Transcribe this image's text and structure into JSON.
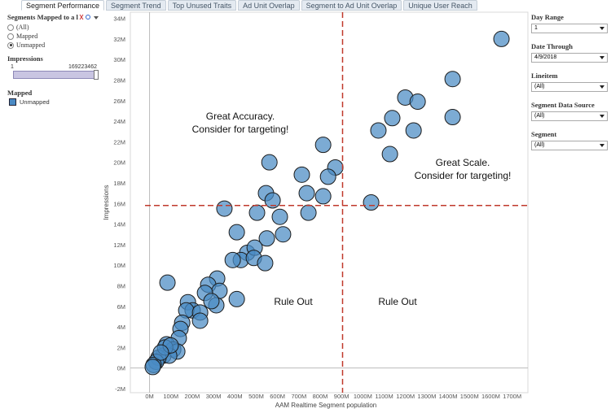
{
  "tabs": [
    "Segment Performance",
    "Segment Trend",
    "Top Unused Traits",
    "Ad Unit Overlap",
    "Segment to Ad Unit Overlap",
    "Unique User Reach"
  ],
  "left_panel": {
    "filter_title": "Segments Mapped to a l",
    "options": [
      "(All)",
      "Mapped",
      "Unmapped"
    ],
    "selected": 2,
    "slider_title": "Impressions",
    "slider_min": "1",
    "slider_max": "169223462",
    "legend_title": "Mapped",
    "legend_item": "Unmapped"
  },
  "right_panel": {
    "filters": [
      {
        "label": "Day Range",
        "value": "1"
      },
      {
        "label": "Date Through",
        "value": "4/9/2018"
      },
      {
        "label": "Lineitem",
        "value": "(All)"
      },
      {
        "label": "Segment Data Source",
        "value": "(All)"
      },
      {
        "label": "Segment",
        "value": "(All)"
      }
    ]
  },
  "chart_data": {
    "type": "scatter",
    "x_label": "AAM Realtime Segment population",
    "y_label": "Impressions",
    "color": "#4a8ac4",
    "xlim": [
      -90,
      1774
    ],
    "ylim": [
      -2.4,
      34.6
    ],
    "xticks": [
      {
        "value": 0,
        "label": "0M"
      },
      {
        "value": 100,
        "label": "100M"
      },
      {
        "value": 200,
        "label": "200M"
      },
      {
        "value": 300,
        "label": "300M"
      },
      {
        "value": 400,
        "label": "400M"
      },
      {
        "value": 500,
        "label": "500M"
      },
      {
        "value": 600,
        "label": "600M"
      },
      {
        "value": 700,
        "label": "700M"
      },
      {
        "value": 800,
        "label": "800M"
      },
      {
        "value": 900,
        "label": "900M"
      },
      {
        "value": 1000,
        "label": "1000M"
      },
      {
        "value": 1100,
        "label": "1100M"
      },
      {
        "value": 1200,
        "label": "1200M"
      },
      {
        "value": 1300,
        "label": "1300M"
      },
      {
        "value": 1400,
        "label": "1400M"
      },
      {
        "value": 1500,
        "label": "1500M"
      },
      {
        "value": 1600,
        "label": "1600M"
      },
      {
        "value": 1700,
        "label": "1700M"
      }
    ],
    "yticks": [
      {
        "value": -2,
        "label": "-2M"
      },
      {
        "value": 0,
        "label": "0M"
      },
      {
        "value": 2,
        "label": "2M"
      },
      {
        "value": 4,
        "label": "4M"
      },
      {
        "value": 6,
        "label": "6M"
      },
      {
        "value": 8,
        "label": "8M"
      },
      {
        "value": 10,
        "label": "10M"
      },
      {
        "value": 12,
        "label": "12M"
      },
      {
        "value": 14,
        "label": "14M"
      },
      {
        "value": 16,
        "label": "16M"
      },
      {
        "value": 18,
        "label": "18M"
      },
      {
        "value": 20,
        "label": "20M"
      },
      {
        "value": 22,
        "label": "22M"
      },
      {
        "value": 24,
        "label": "24M"
      },
      {
        "value": 26,
        "label": "26M"
      },
      {
        "value": 28,
        "label": "28M"
      },
      {
        "value": 30,
        "label": "30M"
      },
      {
        "value": 32,
        "label": "32M"
      },
      {
        "value": 34,
        "label": "34M"
      }
    ],
    "grid": false,
    "x_reference": 905,
    "y_reference": 15.8,
    "annotations": [
      "Great Accuracy.",
      "Consider for targeting!",
      "Great Scale.",
      "Consider for targeting!",
      "Rule Out",
      "Rule Out"
    ],
    "x": [
      1650,
      1421,
      1421,
      1199,
      1257,
      1138,
      1238,
      1073,
      1127,
      1039,
      814,
      871,
      837,
      714,
      737,
      814,
      745,
      562,
      546,
      577,
      611,
      504,
      351,
      626,
      550,
      409,
      458,
      493,
      428,
      489,
      542,
      390,
      84,
      409,
      317,
      275,
      328,
      260,
      313,
      290,
      180,
      202,
      172,
      237,
      237,
      153,
      145,
      137,
      80,
      111,
      65,
      130,
      92,
      42,
      31,
      19,
      15,
      73,
      99,
      53
    ],
    "y": [
      32.0,
      28.1,
      24.4,
      26.3,
      25.9,
      24.3,
      23.1,
      23.1,
      20.8,
      16.1,
      21.7,
      19.5,
      18.6,
      18.8,
      17.0,
      16.7,
      15.1,
      20.0,
      17.0,
      16.3,
      14.7,
      15.1,
      15.5,
      13.0,
      12.6,
      13.2,
      11.2,
      11.7,
      10.5,
      10.7,
      10.2,
      10.5,
      8.3,
      6.7,
      8.7,
      8.1,
      7.5,
      7.3,
      6.1,
      6.5,
      6.4,
      5.6,
      5.6,
      5.4,
      4.6,
      4.4,
      3.8,
      2.9,
      2.3,
      1.8,
      1.2,
      1.6,
      1.2,
      1.0,
      0.6,
      0.3,
      0.1,
      2.0,
      2.2,
      1.5
    ]
  }
}
